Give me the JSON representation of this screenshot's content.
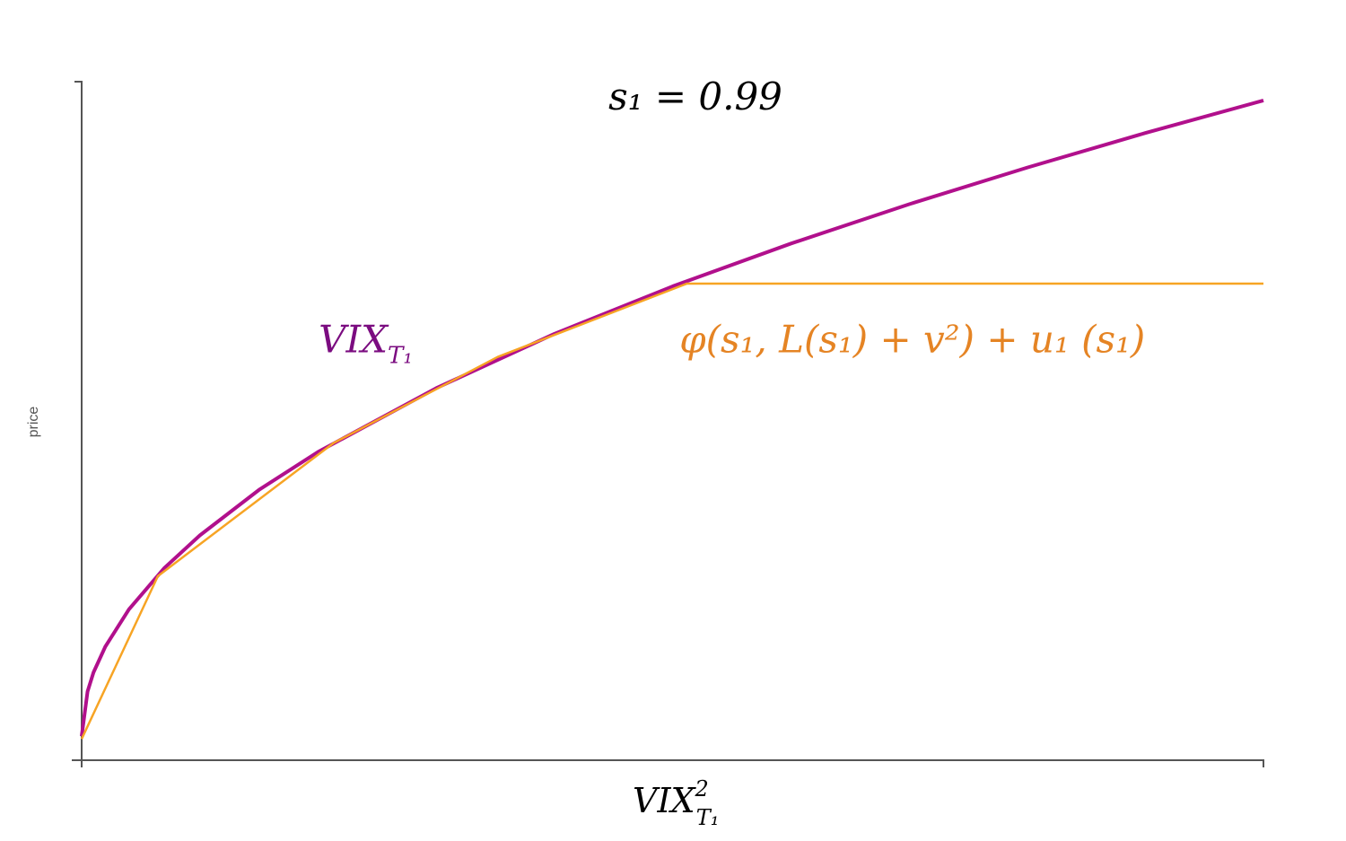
{
  "chart_data": {
    "type": "line",
    "title": "s₁ = 0.99",
    "x_label": {
      "base": "VIX",
      "sup": "2",
      "sub": "T₁"
    },
    "y_label": "price",
    "xlim": [
      0,
      1
    ],
    "ylim": [
      0,
      1
    ],
    "annotations": [
      {
        "base": "VIX",
        "sub": "T₁",
        "color": "#7b0c80",
        "x": 0.28,
        "y": 0.6
      },
      {
        "base": "φ(s₁, L(s₁) + v²) + u₁ (s₁)",
        "color": "#e58424",
        "x": 0.9,
        "y": 0.6
      }
    ],
    "series": [
      {
        "color": "#b1108c",
        "x": [
          0,
          0.005,
          0.01,
          0.02,
          0.04,
          0.07,
          0.1,
          0.15,
          0.2,
          0.3,
          0.4,
          0.5,
          0.6,
          0.7,
          0.8,
          0.9,
          1.0
        ],
        "values": [
          0.034,
          0.1,
          0.128,
          0.166,
          0.221,
          0.282,
          0.33,
          0.397,
          0.453,
          0.547,
          0.627,
          0.697,
          0.76,
          0.818,
          0.872,
          0.923,
          0.971
        ]
      },
      {
        "color": "#f7a424",
        "x": [
          0,
          0.0645,
          0.213,
          0.352,
          0.512,
          1.0
        ],
        "values": [
          0.03,
          0.27,
          0.466,
          0.593,
          0.701,
          0.701
        ]
      }
    ]
  }
}
